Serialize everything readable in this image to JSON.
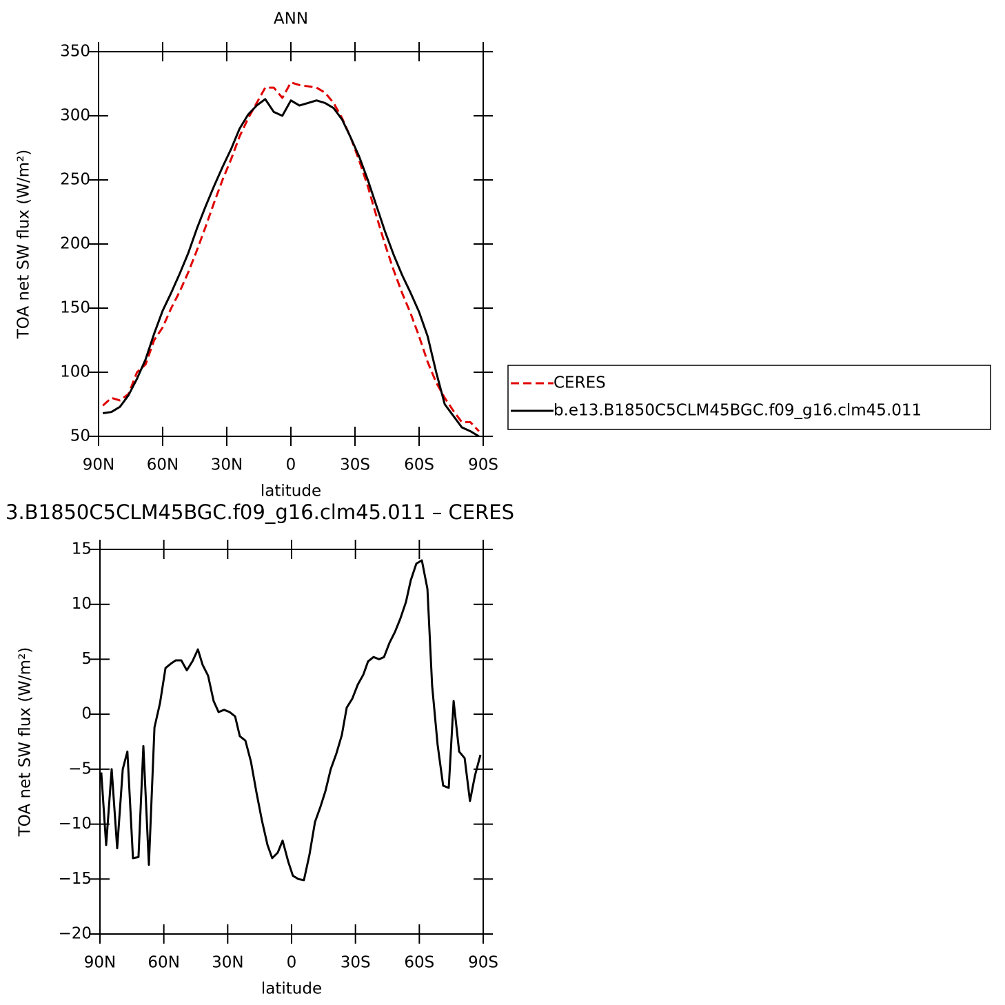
{
  "chart_data": [
    {
      "type": "line",
      "title": "ANN",
      "xlabel": "latitude",
      "ylabel": "TOA net SW flux (W/m²)",
      "x": [
        88,
        84,
        80,
        76,
        72,
        68,
        64,
        60,
        56,
        52,
        48,
        44,
        40,
        36,
        32,
        28,
        24,
        20,
        16,
        12,
        8,
        4,
        0,
        -4,
        -8,
        -12,
        -16,
        -20,
        -24,
        -28,
        -32,
        -36,
        -40,
        -44,
        -48,
        -52,
        -56,
        -60,
        -64,
        -68,
        -72,
        -76,
        -80,
        -84,
        -88
      ],
      "series": [
        {
          "name": "CERES",
          "color": "#e00000",
          "dash": true,
          "values": [
            74,
            80,
            78,
            83,
            100,
            106,
            125,
            135,
            150,
            163,
            178,
            195,
            213,
            232,
            250,
            266,
            284,
            298,
            310,
            322,
            322,
            314,
            326,
            324,
            323,
            322,
            318,
            310,
            298,
            283,
            265,
            245,
            222,
            200,
            180,
            162,
            146,
            128,
            108,
            92,
            80,
            70,
            61,
            61,
            54
          ]
        },
        {
          "name": "b.e13.B1850C5CLM45BGC.f09_g16.clm45.011",
          "color": "#000000",
          "dash": false,
          "values": [
            68,
            69,
            73,
            82,
            95,
            110,
            130,
            148,
            162,
            177,
            193,
            212,
            229,
            245,
            260,
            274,
            290,
            301,
            308,
            313,
            303,
            300,
            312,
            308,
            310,
            312,
            310,
            306,
            297,
            283,
            268,
            250,
            230,
            210,
            192,
            176,
            162,
            147,
            128,
            100,
            75,
            66,
            57,
            54,
            50
          ]
        }
      ],
      "xlim": [
        90,
        -90
      ],
      "xticks": [
        {
          "value": 90,
          "label": "90N"
        },
        {
          "value": 60,
          "label": "60N"
        },
        {
          "value": 30,
          "label": "30N"
        },
        0,
        {
          "value": -30,
          "label": "30S"
        },
        {
          "value": -60,
          "label": "60S"
        },
        {
          "value": -90,
          "label": "90S"
        }
      ],
      "ylim": [
        50,
        350
      ],
      "yticks": [
        50,
        100,
        150,
        200,
        250,
        300,
        350
      ],
      "legend": "right"
    },
    {
      "type": "line",
      "title": "3.B1850C5CLM45BGC.f09_g16.clm45.011 – CERES",
      "xlabel": "latitude",
      "ylabel": "TOA net SW flux (W/m²)",
      "x": [
        89.4,
        87.1,
        84.5,
        81.9,
        79.3,
        77.1,
        74.5,
        71.9,
        69.6,
        67.0,
        64.4,
        61.8,
        59.2,
        56.7,
        54.4,
        51.8,
        49.2,
        46.6,
        44.0,
        41.8,
        39.2,
        36.6,
        34.3,
        31.7,
        29.1,
        26.5,
        24.3,
        21.7,
        19.1,
        16.5,
        13.9,
        11.3,
        9.1,
        6.5,
        4.2,
        1.6,
        -0.6,
        -3.2,
        -5.8,
        -8.4,
        -11.0,
        -13.6,
        -15.9,
        -18.4,
        -21.0,
        -23.6,
        -25.9,
        -28.5,
        -31.1,
        -33.7,
        -35.9,
        -38.5,
        -41.1,
        -43.4,
        -46.0,
        -48.6,
        -51.1,
        -53.7,
        -56.0,
        -58.6,
        -61.2,
        -63.8,
        -66.0,
        -68.6,
        -71.2,
        -73.8,
        -76.1,
        -78.7,
        -81.3,
        -83.8,
        -86.1,
        -88.7
      ],
      "series": [
        {
          "color": "#000000",
          "dash": false,
          "values": [
            -5.3,
            -11.9,
            -5,
            -12.2,
            -5,
            -3.4,
            -13.1,
            -13,
            -2.9,
            -13.7,
            -1.2,
            1,
            4.2,
            4.6,
            4.9,
            4.9,
            4,
            4.8,
            5.9,
            4.5,
            3.5,
            1.2,
            0.2,
            0.4,
            0.2,
            -0.2,
            -2,
            -2.4,
            -4.3,
            -7.1,
            -9.7,
            -11.9,
            -13.1,
            -12.6,
            -11.5,
            -13.4,
            -14.7,
            -15,
            -15.1,
            -12.8,
            -9.8,
            -8.4,
            -7,
            -5,
            -3.6,
            -1.9,
            0.6,
            1.4,
            2.7,
            3.6,
            4.8,
            5.2,
            5,
            5.2,
            6.5,
            7.5,
            8.7,
            10.2,
            12.2,
            13.7,
            14,
            11.4,
            2.6,
            -2.8,
            -6.5,
            -6.7,
            1.2,
            -3.4,
            -4,
            -7.9,
            -5.6,
            -3.7
          ]
        }
      ],
      "xlim": [
        90,
        -90
      ],
      "xticks": [
        {
          "value": 90,
          "label": "90N"
        },
        {
          "value": 60,
          "label": "60N"
        },
        {
          "value": 30,
          "label": "30N"
        },
        0,
        {
          "value": -30,
          "label": "30S"
        },
        {
          "value": -60,
          "label": "60S"
        },
        {
          "value": -90,
          "label": "90S"
        }
      ],
      "ylim": [
        -20,
        15
      ],
      "yticks": [
        {
          "value": -20,
          "label": "−20"
        },
        {
          "value": -15,
          "label": "−15"
        },
        {
          "value": -10,
          "label": "−10"
        },
        {
          "value": -5,
          "label": "−5"
        },
        0,
        5,
        10,
        15
      ]
    }
  ]
}
